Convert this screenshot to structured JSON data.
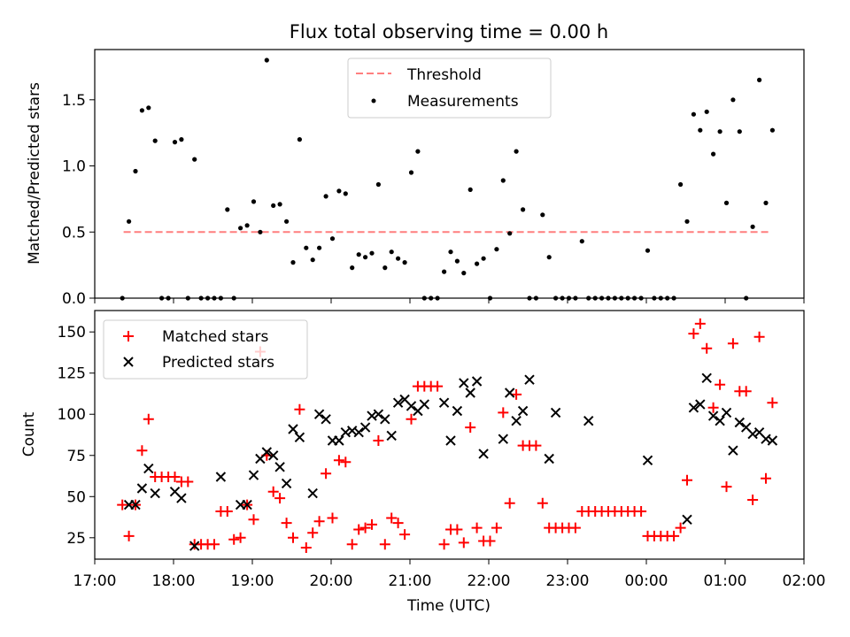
{
  "title": "Flux total observing time = 0.00 h",
  "colors": {
    "threshold": "#ff7f7f",
    "measurements": "#000000",
    "matched": "#ff0000",
    "predicted": "#000000"
  },
  "chart_data": [
    {
      "type": "scatter",
      "title": "Flux total observing time = 0.00 h",
      "xlabel": "",
      "ylabel": "Matched/Predicted stars",
      "xlim": [
        "17:00",
        "02:00"
      ],
      "ylim": [
        0,
        1.88
      ],
      "yticks": [
        0.0,
        0.5,
        1.0,
        1.5
      ],
      "legend_position": "top-center",
      "threshold": {
        "name": "Threshold",
        "x": [
          "17:22",
          "23:00",
          "01:35"
        ],
        "y": 0.5
      },
      "measurements_name": "Measurements",
      "measurements": [
        [
          "17:21",
          0
        ],
        [
          "17:26",
          0.58
        ],
        [
          "17:31",
          0.96
        ],
        [
          "17:36",
          1.42
        ],
        [
          "17:41",
          1.44
        ],
        [
          "17:46",
          1.19
        ],
        [
          "17:51",
          0
        ],
        [
          "17:56",
          0
        ],
        [
          "18:01",
          1.18
        ],
        [
          "18:06",
          1.2
        ],
        [
          "18:11",
          0
        ],
        [
          "18:16",
          1.05
        ],
        [
          "18:21",
          0
        ],
        [
          "18:26",
          0
        ],
        [
          "18:31",
          0
        ],
        [
          "18:36",
          0
        ],
        [
          "18:41",
          0.67
        ],
        [
          "18:46",
          0
        ],
        [
          "18:51",
          0.53
        ],
        [
          "18:56",
          0.55
        ],
        [
          "19:01",
          0.73
        ],
        [
          "19:06",
          0.5
        ],
        [
          "19:11",
          1.8
        ],
        [
          "19:16",
          0.7
        ],
        [
          "19:21",
          0.71
        ],
        [
          "19:26",
          0.58
        ],
        [
          "19:31",
          0.27
        ],
        [
          "19:36",
          1.2
        ],
        [
          "19:41",
          0.38
        ],
        [
          "19:46",
          0.29
        ],
        [
          "19:51",
          0.38
        ],
        [
          "19:56",
          0.77
        ],
        [
          "20:01",
          0.45
        ],
        [
          "20:06",
          0.81
        ],
        [
          "20:11",
          0.79
        ],
        [
          "20:16",
          0.23
        ],
        [
          "20:21",
          0.33
        ],
        [
          "20:26",
          0.31
        ],
        [
          "20:31",
          0.34
        ],
        [
          "20:36",
          0.86
        ],
        [
          "20:41",
          0.23
        ],
        [
          "20:46",
          0.35
        ],
        [
          "20:51",
          0.3
        ],
        [
          "20:56",
          0.27
        ],
        [
          "21:01",
          0.95
        ],
        [
          "21:06",
          1.11
        ],
        [
          "21:11",
          0
        ],
        [
          "21:16",
          0
        ],
        [
          "21:21",
          0
        ],
        [
          "21:26",
          0.2
        ],
        [
          "21:31",
          0.35
        ],
        [
          "21:36",
          0.28
        ],
        [
          "21:41",
          0.19
        ],
        [
          "21:46",
          0.82
        ],
        [
          "21:51",
          0.26
        ],
        [
          "21:56",
          0.3
        ],
        [
          "22:01",
          0
        ],
        [
          "22:06",
          0.37
        ],
        [
          "22:11",
          0.89
        ],
        [
          "22:16",
          0.49
        ],
        [
          "22:21",
          1.11
        ],
        [
          "22:26",
          0.67
        ],
        [
          "22:31",
          0
        ],
        [
          "22:36",
          0
        ],
        [
          "22:41",
          0.63
        ],
        [
          "22:46",
          0.31
        ],
        [
          "22:51",
          0
        ],
        [
          "22:56",
          0
        ],
        [
          "23:01",
          0
        ],
        [
          "23:06",
          0
        ],
        [
          "23:11",
          0.43
        ],
        [
          "23:16",
          0
        ],
        [
          "23:21",
          0
        ],
        [
          "23:26",
          0
        ],
        [
          "23:31",
          0
        ],
        [
          "23:36",
          0
        ],
        [
          "23:41",
          0
        ],
        [
          "23:46",
          0
        ],
        [
          "23:51",
          0
        ],
        [
          "23:56",
          0
        ],
        [
          "00:01",
          0.36
        ],
        [
          "00:06",
          0
        ],
        [
          "00:11",
          0
        ],
        [
          "00:16",
          0
        ],
        [
          "00:21",
          0
        ],
        [
          "00:26",
          0.86
        ],
        [
          "00:31",
          0.58
        ],
        [
          "00:36",
          1.39
        ],
        [
          "00:41",
          1.27
        ],
        [
          "00:46",
          1.41
        ],
        [
          "00:51",
          1.09
        ],
        [
          "00:56",
          1.26
        ],
        [
          "01:01",
          0.72
        ],
        [
          "01:06",
          1.5
        ],
        [
          "01:11",
          1.26
        ],
        [
          "01:16",
          0
        ],
        [
          "01:21",
          0.54
        ],
        [
          "01:26",
          1.65
        ],
        [
          "01:31",
          0.72
        ],
        [
          "01:36",
          1.27
        ]
      ]
    },
    {
      "type": "scatter",
      "title": "",
      "xlabel": "Time (UTC)",
      "ylabel": "Count",
      "xlim": [
        "17:00",
        "02:00"
      ],
      "xticks": [
        "17:00",
        "18:00",
        "19:00",
        "20:00",
        "21:00",
        "22:00",
        "23:00",
        "00:00",
        "01:00",
        "02:00"
      ],
      "ylim": [
        12,
        163
      ],
      "yticks": [
        25,
        50,
        75,
        100,
        125,
        150
      ],
      "legend_position": "top-left",
      "series": [
        {
          "name": "Matched stars",
          "marker": "plus",
          "points": [
            [
              "17:21",
              45
            ],
            [
              "17:26",
              26
            ],
            [
              "17:31",
              45
            ],
            [
              "17:36",
              78
            ],
            [
              "17:41",
              97
            ],
            [
              "17:46",
              62
            ],
            [
              "17:51",
              62
            ],
            [
              "17:56",
              62
            ],
            [
              "18:01",
              62
            ],
            [
              "18:06",
              59
            ],
            [
              "18:11",
              59
            ],
            [
              "18:16",
              21
            ],
            [
              "18:21",
              21
            ],
            [
              "18:26",
              21
            ],
            [
              "18:31",
              21
            ],
            [
              "18:36",
              41
            ],
            [
              "18:41",
              41
            ],
            [
              "18:46",
              24
            ],
            [
              "18:51",
              25
            ],
            [
              "18:56",
              45
            ],
            [
              "19:01",
              36
            ],
            [
              "19:06",
              138
            ],
            [
              "19:11",
              75
            ],
            [
              "19:16",
              53
            ],
            [
              "19:21",
              49
            ],
            [
              "19:26",
              34
            ],
            [
              "19:31",
              25
            ],
            [
              "19:36",
              103
            ],
            [
              "19:41",
              19
            ],
            [
              "19:46",
              28
            ],
            [
              "19:51",
              35
            ],
            [
              "19:56",
              64
            ],
            [
              "20:01",
              37
            ],
            [
              "20:06",
              72
            ],
            [
              "20:11",
              71
            ],
            [
              "20:16",
              21
            ],
            [
              "20:21",
              30
            ],
            [
              "20:26",
              31
            ],
            [
              "20:31",
              33
            ],
            [
              "20:36",
              84
            ],
            [
              "20:41",
              21
            ],
            [
              "20:46",
              37
            ],
            [
              "20:51",
              34
            ],
            [
              "20:56",
              27
            ],
            [
              "21:01",
              97
            ],
            [
              "21:06",
              117
            ],
            [
              "21:11",
              117
            ],
            [
              "21:16",
              117
            ],
            [
              "21:21",
              117
            ],
            [
              "21:26",
              21
            ],
            [
              "21:31",
              30
            ],
            [
              "21:36",
              30
            ],
            [
              "21:41",
              22
            ],
            [
              "21:46",
              92
            ],
            [
              "21:51",
              31
            ],
            [
              "21:56",
              23
            ],
            [
              "22:01",
              23
            ],
            [
              "22:06",
              31
            ],
            [
              "22:11",
              101
            ],
            [
              "22:16",
              46
            ],
            [
              "22:21",
              112
            ],
            [
              "22:26",
              81
            ],
            [
              "22:31",
              81
            ],
            [
              "22:36",
              81
            ],
            [
              "22:41",
              46
            ],
            [
              "22:46",
              31
            ],
            [
              "22:51",
              31
            ],
            [
              "22:56",
              31
            ],
            [
              "23:01",
              31
            ],
            [
              "23:06",
              31
            ],
            [
              "23:11",
              41
            ],
            [
              "23:16",
              41
            ],
            [
              "23:21",
              41
            ],
            [
              "23:26",
              41
            ],
            [
              "23:31",
              41
            ],
            [
              "23:36",
              41
            ],
            [
              "23:41",
              41
            ],
            [
              "23:46",
              41
            ],
            [
              "23:51",
              41
            ],
            [
              "23:56",
              41
            ],
            [
              "00:01",
              26
            ],
            [
              "00:06",
              26
            ],
            [
              "00:11",
              26
            ],
            [
              "00:16",
              26
            ],
            [
              "00:21",
              26
            ],
            [
              "00:26",
              31
            ],
            [
              "00:31",
              60
            ],
            [
              "00:36",
              149
            ],
            [
              "00:41",
              155
            ],
            [
              "00:46",
              140
            ],
            [
              "00:51",
              104
            ],
            [
              "00:56",
              118
            ],
            [
              "01:01",
              56
            ],
            [
              "01:06",
              143
            ],
            [
              "01:11",
              114
            ],
            [
              "01:16",
              114
            ],
            [
              "01:21",
              48
            ],
            [
              "01:26",
              147
            ],
            [
              "01:31",
              61
            ],
            [
              "01:36",
              107
            ]
          ]
        },
        {
          "name": "Predicted stars",
          "marker": "x",
          "points": [
            [
              "17:26",
              45
            ],
            [
              "17:31",
              45
            ],
            [
              "17:36",
              55
            ],
            [
              "17:41",
              67
            ],
            [
              "17:46",
              52
            ],
            [
              "18:01",
              53
            ],
            [
              "18:06",
              49
            ],
            [
              "18:16",
              20
            ],
            [
              "18:36",
              62
            ],
            [
              "18:51",
              45
            ],
            [
              "18:56",
              45
            ],
            [
              "19:01",
              63
            ],
            [
              "19:06",
              73
            ],
            [
              "19:11",
              77
            ],
            [
              "19:16",
              75
            ],
            [
              "19:21",
              68
            ],
            [
              "19:26",
              58
            ],
            [
              "19:31",
              91
            ],
            [
              "19:36",
              86
            ],
            [
              "19:46",
              52
            ],
            [
              "19:51",
              100
            ],
            [
              "19:56",
              97
            ],
            [
              "20:01",
              84
            ],
            [
              "20:06",
              84
            ],
            [
              "20:11",
              89
            ],
            [
              "20:16",
              90
            ],
            [
              "20:21",
              89
            ],
            [
              "20:26",
              92
            ],
            [
              "20:31",
              99
            ],
            [
              "20:36",
              100
            ],
            [
              "20:41",
              97
            ],
            [
              "20:46",
              87
            ],
            [
              "20:51",
              107
            ],
            [
              "20:56",
              109
            ],
            [
              "21:01",
              105
            ],
            [
              "21:06",
              102
            ],
            [
              "21:11",
              106
            ],
            [
              "21:26",
              107
            ],
            [
              "21:31",
              84
            ],
            [
              "21:36",
              102
            ],
            [
              "21:41",
              119
            ],
            [
              "21:46",
              113
            ],
            [
              "21:51",
              120
            ],
            [
              "21:56",
              76
            ],
            [
              "22:11",
              85
            ],
            [
              "22:16",
              113
            ],
            [
              "22:21",
              96
            ],
            [
              "22:26",
              102
            ],
            [
              "22:31",
              121
            ],
            [
              "22:46",
              73
            ],
            [
              "22:51",
              101
            ],
            [
              "23:16",
              96
            ],
            [
              "00:01",
              72
            ],
            [
              "00:31",
              36
            ],
            [
              "00:36",
              104
            ],
            [
              "00:41",
              106
            ],
            [
              "00:46",
              122
            ],
            [
              "00:51",
              99
            ],
            [
              "00:56",
              96
            ],
            [
              "01:01",
              101
            ],
            [
              "01:06",
              78
            ],
            [
              "01:11",
              95
            ],
            [
              "01:16",
              92
            ],
            [
              "01:21",
              88
            ],
            [
              "01:26",
              89
            ],
            [
              "01:31",
              85
            ],
            [
              "01:36",
              84
            ]
          ]
        }
      ]
    }
  ]
}
